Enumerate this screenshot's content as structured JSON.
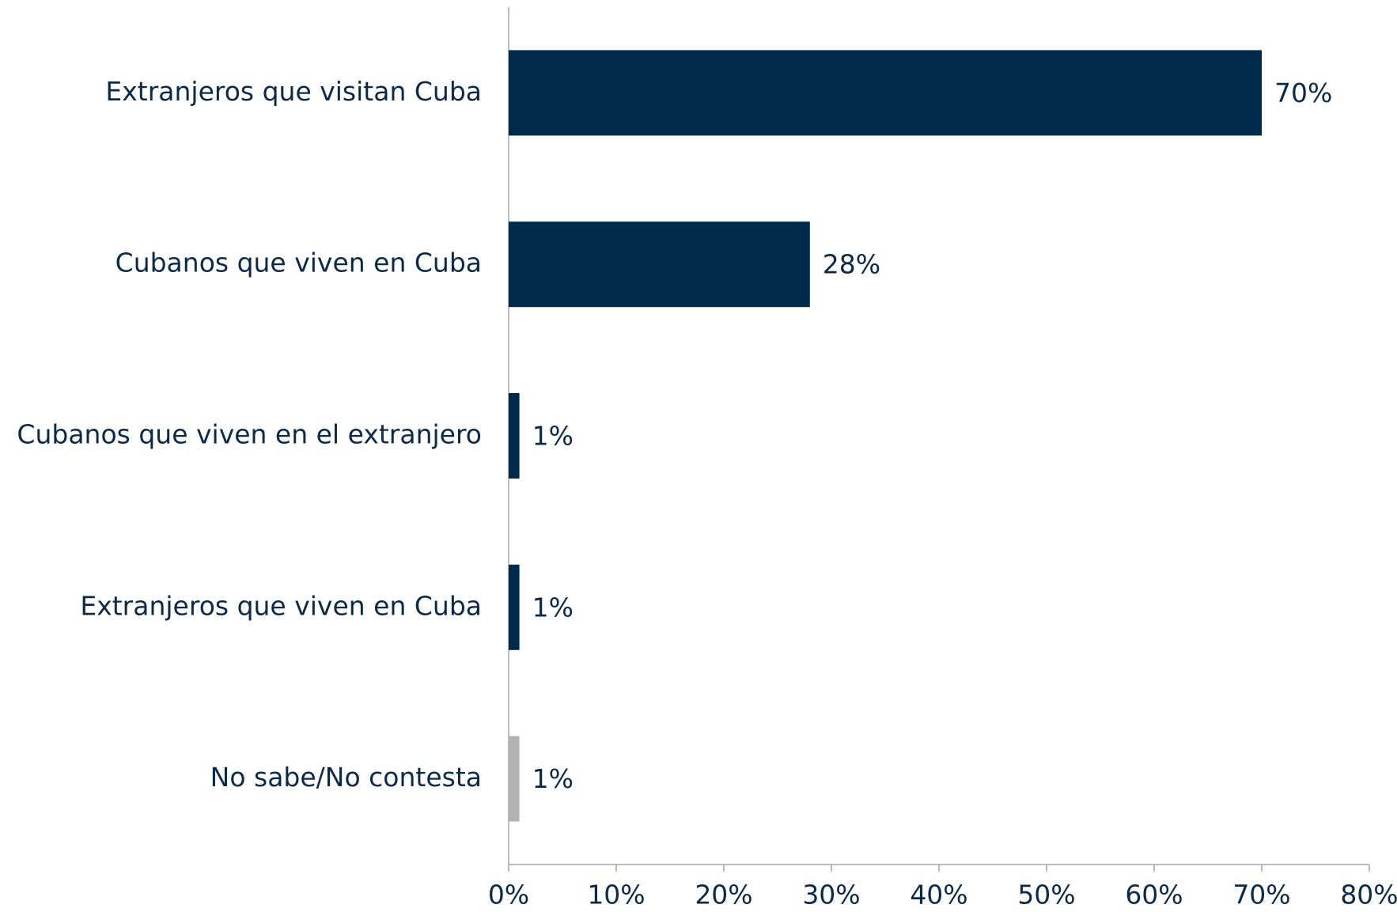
{
  "chart_data": {
    "type": "bar",
    "orientation": "horizontal",
    "categories": [
      "Extranjeros que visitan Cuba",
      "Cubanos que viven en Cuba",
      "Cubanos que viven en el extranjero",
      "Extranjeros que viven en Cuba",
      "No sabe/No contesta"
    ],
    "values": [
      70,
      28,
      1,
      1,
      1
    ],
    "value_labels": [
      "70%",
      "28%",
      "1%",
      "1%",
      "1%"
    ],
    "colors": [
      "#002a4c",
      "#002a4c",
      "#002a4c",
      "#002a4c",
      "#b3b3b3"
    ],
    "xlim": [
      0,
      80
    ],
    "xticks": [
      {
        "value": 0,
        "label": "0%"
      },
      {
        "value": 10,
        "label": "10%"
      },
      {
        "value": 20,
        "label": "20%"
      },
      {
        "value": 30,
        "label": "30%"
      },
      {
        "value": 40,
        "label": "40%"
      },
      {
        "value": 50,
        "label": "50%"
      },
      {
        "value": 60,
        "label": "60%"
      },
      {
        "value": 70,
        "label": "70%"
      },
      {
        "value": 80,
        "label": "80%"
      }
    ],
    "grid": false
  }
}
